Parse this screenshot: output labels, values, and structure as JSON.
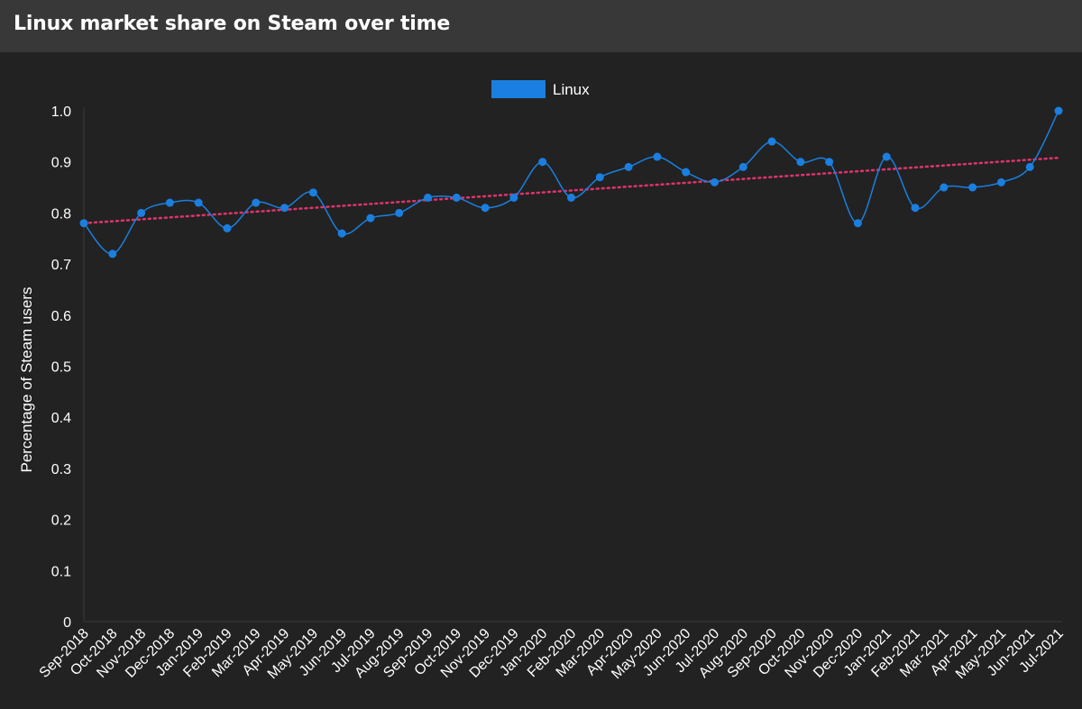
{
  "header": {
    "title": "Linux market share on Steam over time"
  },
  "chart_data": {
    "type": "line",
    "title": "Linux market share on Steam over time",
    "xlabel": "",
    "ylabel": "Percentage of Steam users",
    "ylim": [
      0,
      1.0
    ],
    "yticks": [
      "0",
      "0.1",
      "0.2",
      "0.3",
      "0.4",
      "0.5",
      "0.6",
      "0.7",
      "0.8",
      "0.9",
      "1.0"
    ],
    "grid": false,
    "legend_position": "top-center",
    "categories": [
      "Sep-2018",
      "Oct-2018",
      "Nov-2018",
      "Dec-2018",
      "Jan-2019",
      "Feb-2019",
      "Mar-2019",
      "Apr-2019",
      "May-2019",
      "Jun-2019",
      "Jul-2019",
      "Aug-2019",
      "Sep-2019",
      "Oct-2019",
      "Nov-2019",
      "Dec-2019",
      "Jan-2020",
      "Feb-2020",
      "Mar-2020",
      "Apr-2020",
      "May-2020",
      "Jun-2020",
      "Jul-2020",
      "Aug-2020",
      "Sep-2020",
      "Oct-2020",
      "Nov-2020",
      "Dec-2020",
      "Jan-2021",
      "Feb-2021",
      "Mar-2021",
      "Apr-2021",
      "May-2021",
      "Jun-2021",
      "Jul-2021"
    ],
    "series": [
      {
        "name": "Linux",
        "color": "#1a7fe0",
        "values": [
          0.78,
          0.72,
          0.8,
          0.82,
          0.82,
          0.77,
          0.82,
          0.81,
          0.84,
          0.76,
          0.79,
          0.8,
          0.83,
          0.83,
          0.81,
          0.83,
          0.9,
          0.83,
          0.87,
          0.89,
          0.91,
          0.88,
          0.86,
          0.89,
          0.94,
          0.9,
          0.9,
          0.78,
          0.91,
          0.81,
          0.85,
          0.85,
          0.86,
          0.89,
          1.0
        ]
      }
    ],
    "trendline": {
      "color": "#e0336b",
      "style": "dotted",
      "start": 0.78,
      "end": 0.908
    }
  }
}
